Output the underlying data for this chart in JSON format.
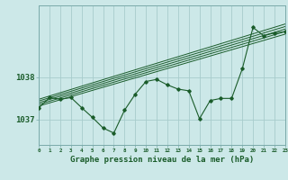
{
  "title": "Graphe pression niveau de la mer (hPa)",
  "bg_color": "#cce8e8",
  "grid_color": "#a8cccc",
  "line_color": "#1a5c2a",
  "x_min": 0,
  "x_max": 23,
  "y_min": 1036.4,
  "y_max": 1039.7,
  "y_ticks": [
    1037,
    1038
  ],
  "x_ticks": [
    0,
    1,
    2,
    3,
    4,
    5,
    6,
    7,
    8,
    9,
    10,
    11,
    12,
    13,
    14,
    15,
    16,
    17,
    18,
    19,
    20,
    21,
    22,
    23
  ],
  "main_line": [
    [
      0,
      1037.28
    ],
    [
      1,
      1037.52
    ],
    [
      2,
      1037.48
    ],
    [
      3,
      1037.52
    ],
    [
      4,
      1037.28
    ],
    [
      5,
      1037.05
    ],
    [
      6,
      1036.8
    ],
    [
      7,
      1036.68
    ],
    [
      8,
      1037.22
    ],
    [
      9,
      1037.6
    ],
    [
      10,
      1037.9
    ],
    [
      11,
      1037.95
    ],
    [
      12,
      1037.82
    ],
    [
      13,
      1037.72
    ],
    [
      14,
      1037.68
    ],
    [
      15,
      1037.02
    ],
    [
      16,
      1037.45
    ],
    [
      17,
      1037.5
    ],
    [
      18,
      1037.5
    ],
    [
      19,
      1038.2
    ],
    [
      20,
      1039.18
    ],
    [
      21,
      1038.98
    ],
    [
      22,
      1039.05
    ],
    [
      23,
      1039.08
    ]
  ],
  "trend_lines": [
    [
      [
        0,
        1037.32
      ],
      [
        23,
        1039.02
      ]
    ],
    [
      [
        0,
        1037.36
      ],
      [
        23,
        1039.08
      ]
    ],
    [
      [
        0,
        1037.4
      ],
      [
        23,
        1039.14
      ]
    ],
    [
      [
        0,
        1037.44
      ],
      [
        23,
        1039.2
      ]
    ],
    [
      [
        0,
        1037.48
      ],
      [
        23,
        1039.26
      ]
    ]
  ]
}
